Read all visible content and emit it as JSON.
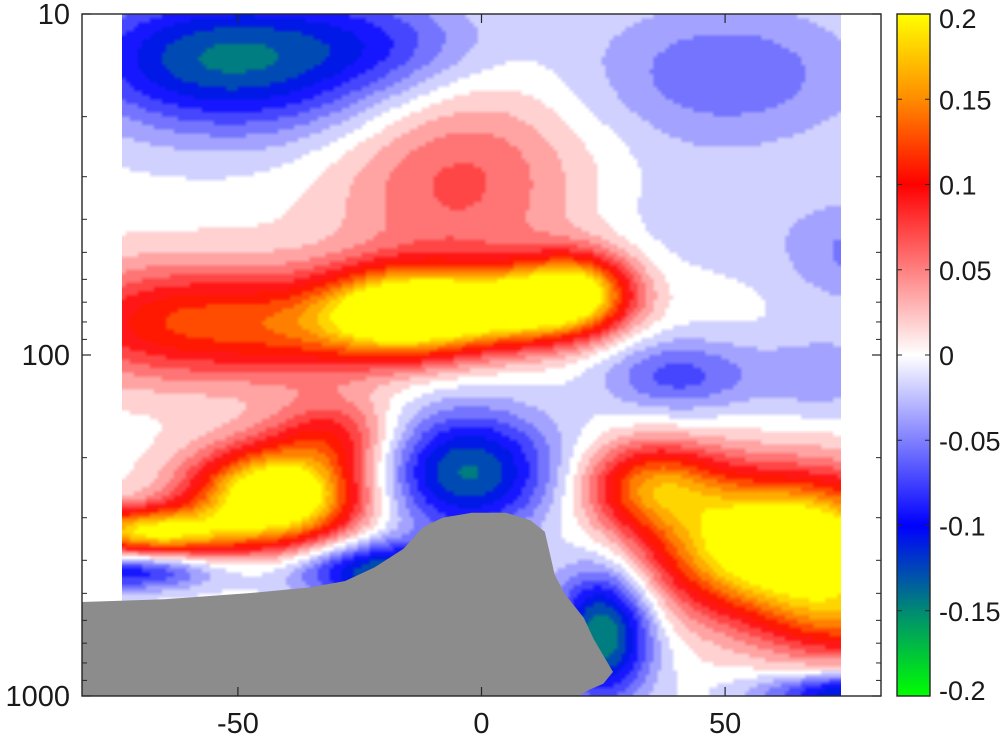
{
  "chart_data": {
    "type": "heatmap",
    "title": "",
    "xlabel": "",
    "ylabel": "",
    "x_range": [
      -82,
      82
    ],
    "y_range": [
      10,
      1000
    ],
    "y_scale": "log",
    "y_reversed": true,
    "x_ticks": [
      -50,
      0,
      50
    ],
    "x_tick_labels": [
      "-50",
      "0",
      "50"
    ],
    "y_ticks": [
      10,
      100,
      1000
    ],
    "y_tick_labels": [
      "10",
      "100",
      "1000"
    ],
    "colorbar": {
      "range": [
        -0.2,
        0.2
      ],
      "ticks": [
        0.2,
        0.15,
        0.1,
        0.05,
        0,
        -0.05,
        -0.1,
        -0.15,
        -0.2
      ],
      "tick_labels": [
        "0.2",
        "0.15",
        "0.1",
        "0.05",
        "0",
        "-0.05",
        "-0.1",
        "-0.15",
        "-0.2"
      ],
      "colors": [
        {
          "v": -0.2,
          "c": "#00ff00"
        },
        {
          "v": -0.15,
          "c": "#008a73"
        },
        {
          "v": -0.1,
          "c": "#0000ff"
        },
        {
          "v": -0.05,
          "c": "#8080ff"
        },
        {
          "v": 0,
          "c": "#ffffff"
        },
        {
          "v": 0.05,
          "c": "#ff8080"
        },
        {
          "v": 0.1,
          "c": "#ff0000"
        },
        {
          "v": 0.15,
          "c": "#ff8c00"
        },
        {
          "v": 0.2,
          "c": "#ffff00"
        }
      ],
      "missing_color": "#8c8c8c"
    },
    "grid": false,
    "blobs": [
      {
        "x": -45,
        "y": 14,
        "sx": 24,
        "sy": 0.16,
        "v": -0.1
      },
      {
        "x": -62,
        "y": 13,
        "sx": 18,
        "sy": 0.13,
        "v": -0.05
      },
      {
        "x": -20,
        "y": 12,
        "sx": 16,
        "sy": 0.1,
        "v": -0.04
      },
      {
        "x": 50,
        "y": 15,
        "sx": 22,
        "sy": 0.16,
        "v": -0.06
      },
      {
        "x": 42,
        "y": 40,
        "sx": 14,
        "sy": 0.12,
        "v": -0.02
      },
      {
        "x": 78,
        "y": 50,
        "sx": 12,
        "sy": 0.12,
        "v": -0.05
      },
      {
        "x": 40,
        "y": 115,
        "sx": 11,
        "sy": 0.08,
        "v": -0.07
      },
      {
        "x": 70,
        "y": 115,
        "sx": 11,
        "sy": 0.09,
        "v": -0.04
      },
      {
        "x": -5,
        "y": 30,
        "sx": 18,
        "sy": 0.22,
        "v": 0.07
      },
      {
        "x": -60,
        "y": 80,
        "sx": 20,
        "sy": 0.12,
        "v": 0.12
      },
      {
        "x": -35,
        "y": 85,
        "sx": 12,
        "sy": 0.1,
        "v": 0.05
      },
      {
        "x": -15,
        "y": 75,
        "sx": 12,
        "sy": 0.09,
        "v": 0.25
      },
      {
        "x": 8,
        "y": 72,
        "sx": 11,
        "sy": 0.08,
        "v": 0.18
      },
      {
        "x": 20,
        "y": 65,
        "sx": 8,
        "sy": 0.08,
        "v": 0.16
      },
      {
        "x": -42,
        "y": 260,
        "sx": 12,
        "sy": 0.1,
        "v": 0.26
      },
      {
        "x": -68,
        "y": 330,
        "sx": 12,
        "sy": 0.05,
        "v": 0.19
      },
      {
        "x": -30,
        "y": 170,
        "sx": 9,
        "sy": 0.08,
        "v": 0.08
      },
      {
        "x": 62,
        "y": 360,
        "sx": 18,
        "sy": 0.14,
        "v": 0.27
      },
      {
        "x": 35,
        "y": 240,
        "sx": 10,
        "sy": 0.09,
        "v": 0.13
      },
      {
        "x": 75,
        "y": 600,
        "sx": 12,
        "sy": 0.09,
        "v": 0.09
      },
      {
        "x": -3,
        "y": 220,
        "sx": 13,
        "sy": 0.13,
        "v": -0.14
      },
      {
        "x": 25,
        "y": 650,
        "sx": 7,
        "sy": 0.14,
        "v": -0.16
      },
      {
        "x": -20,
        "y": 430,
        "sx": 13,
        "sy": 0.06,
        "v": -0.14
      },
      {
        "x": 78,
        "y": 980,
        "sx": 14,
        "sy": 0.04,
        "v": -0.13
      },
      {
        "x": -72,
        "y": 430,
        "sx": 12,
        "sy": 0.04,
        "v": -0.1
      }
    ],
    "missing_region_boundary": [
      [
        -82,
        530
      ],
      [
        -65,
        520
      ],
      [
        -48,
        500
      ],
      [
        -35,
        480
      ],
      [
        -28,
        460
      ],
      [
        -22,
        420
      ],
      [
        -16,
        370
      ],
      [
        -12,
        320
      ],
      [
        -8,
        300
      ],
      [
        -2,
        290
      ],
      [
        5,
        290
      ],
      [
        10,
        305
      ],
      [
        13,
        330
      ],
      [
        14,
        380
      ],
      [
        15,
        440
      ],
      [
        17,
        500
      ],
      [
        21,
        590
      ],
      [
        23,
        680
      ],
      [
        25,
        760
      ],
      [
        27,
        850
      ],
      [
        25,
        920
      ],
      [
        22,
        960
      ],
      [
        20,
        1000
      ]
    ]
  }
}
